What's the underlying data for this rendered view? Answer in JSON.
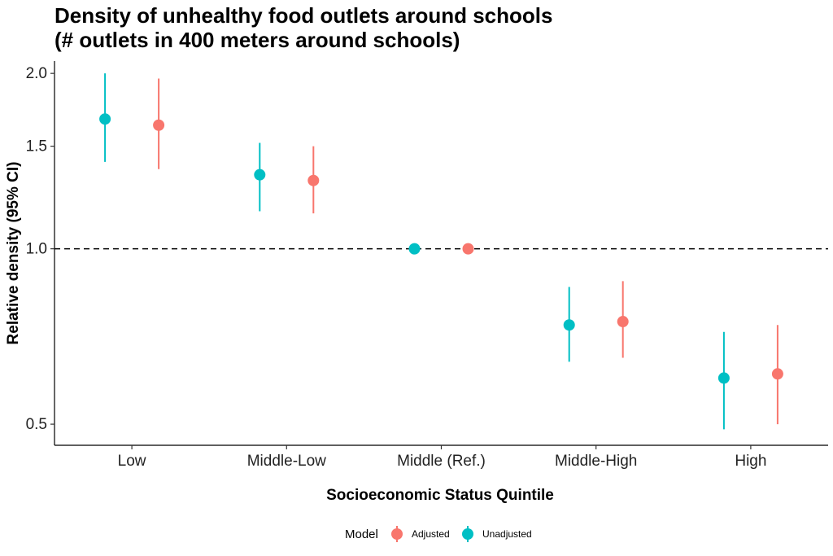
{
  "chart_data": {
    "type": "scatter",
    "title_line1": "Density of unhealthy food outlets around schools",
    "title_line2": "(# outlets in 400 meters around schools)",
    "xlabel": "Socioeconomic Status Quintile",
    "ylabel": "Relative density (95% CI)",
    "categories": [
      "Low",
      "Middle-Low",
      "Middle (Ref.)",
      "Middle-High",
      "High"
    ],
    "y_scale": "log",
    "ylim": [
      0.46,
      2.1
    ],
    "yticks": [
      0.5,
      1.0,
      1.5,
      2.0
    ],
    "ytick_labels": [
      "0.5",
      "1.0",
      "1.5",
      "2.0"
    ],
    "reference_line": 1.0,
    "legend_title": "Model",
    "legend_position": "bottom",
    "series": [
      {
        "name": "Adjusted",
        "color": "#F8766D",
        "values": [
          1.63,
          1.31,
          1.0,
          0.75,
          0.61
        ],
        "lower": [
          1.37,
          1.15,
          1.0,
          0.65,
          0.5
        ],
        "upper": [
          1.96,
          1.5,
          1.0,
          0.88,
          0.74
        ]
      },
      {
        "name": "Unadjusted",
        "color": "#00BFC4",
        "values": [
          1.67,
          1.34,
          1.0,
          0.74,
          0.6
        ],
        "lower": [
          1.41,
          1.16,
          1.0,
          0.64,
          0.49
        ],
        "upper": [
          2.0,
          1.52,
          1.0,
          0.86,
          0.72
        ]
      }
    ]
  }
}
